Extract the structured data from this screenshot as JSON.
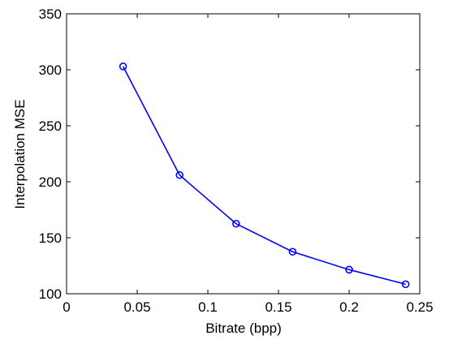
{
  "chart_data": {
    "type": "line",
    "title": "",
    "xlabel": "Bitrate (bpp)",
    "ylabel": "Interpolation MSE",
    "xlim": [
      0,
      0.25
    ],
    "ylim": [
      100,
      350
    ],
    "x_ticks": [
      "0",
      "0.05",
      "0.1",
      "0.15",
      "0.2",
      "0.25"
    ],
    "y_ticks": [
      "100",
      "150",
      "200",
      "250",
      "300",
      "350"
    ],
    "grid": false,
    "series": [
      {
        "color": "#0000ff",
        "marker": "circle",
        "x": [
          0.04,
          0.08,
          0.12,
          0.16,
          0.2,
          0.24
        ],
        "y": [
          303,
          206,
          162.5,
          137.5,
          121.5,
          108.5
        ]
      }
    ]
  }
}
